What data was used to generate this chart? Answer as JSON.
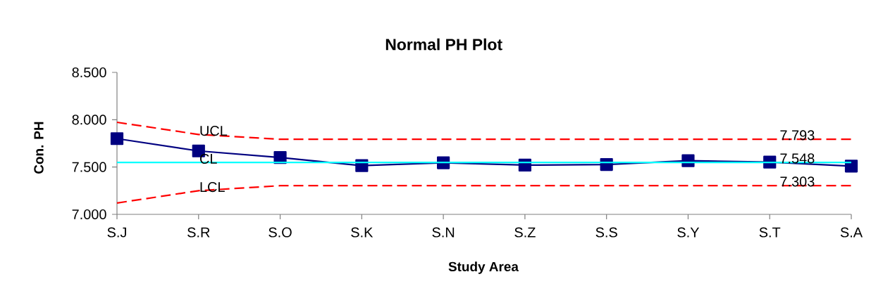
{
  "chart_data": {
    "type": "line",
    "title": "Normal PH Plot",
    "xlabel": "Study Area",
    "ylabel": "Con. PH",
    "categories": [
      "S.J",
      "S.R",
      "S.O",
      "S.K",
      "S.N",
      "S.Z",
      "S.S",
      "S.Y",
      "S.T",
      "S.A"
    ],
    "ylim": [
      7.0,
      8.5
    ],
    "yticks": [
      {
        "value": 7.0,
        "label": "7.000"
      },
      {
        "value": 7.5,
        "label": "7.500"
      },
      {
        "value": 8.0,
        "label": "8.000"
      },
      {
        "value": 8.5,
        "label": "8.500"
      }
    ],
    "grid": false,
    "legend": false,
    "series": [
      {
        "color": "#000080",
        "marker": "square",
        "line_style": "solid",
        "values": [
          7.8,
          7.67,
          7.6,
          7.515,
          7.545,
          7.52,
          7.527,
          7.567,
          7.552,
          7.51
        ]
      },
      {
        "name": "UCL",
        "color": "#ff0000",
        "marker": "none",
        "line_style": "dashed",
        "values": [
          7.973,
          7.844,
          7.793,
          7.793,
          7.793,
          7.793,
          7.793,
          7.793,
          7.793,
          7.793
        ],
        "value_labels": [
          null,
          null,
          null,
          null,
          null,
          null,
          null,
          null,
          "7.793",
          null
        ]
      },
      {
        "name": "CL",
        "color": "#00ffff",
        "marker": "none",
        "line_style": "solid",
        "values": [
          7.548,
          7.548,
          7.548,
          7.548,
          7.548,
          7.548,
          7.548,
          7.548,
          7.548,
          7.548
        ],
        "value_labels": [
          null,
          null,
          null,
          null,
          null,
          null,
          null,
          null,
          "7.548",
          null
        ]
      },
      {
        "name": "LCL",
        "color": "#ff0000",
        "marker": "none",
        "line_style": "dashed",
        "values": [
          7.12,
          7.25,
          7.303,
          7.303,
          7.303,
          7.303,
          7.303,
          7.303,
          7.303,
          7.303
        ],
        "value_labels": [
          null,
          null,
          null,
          null,
          null,
          null,
          null,
          null,
          "7.303",
          null
        ]
      }
    ]
  }
}
